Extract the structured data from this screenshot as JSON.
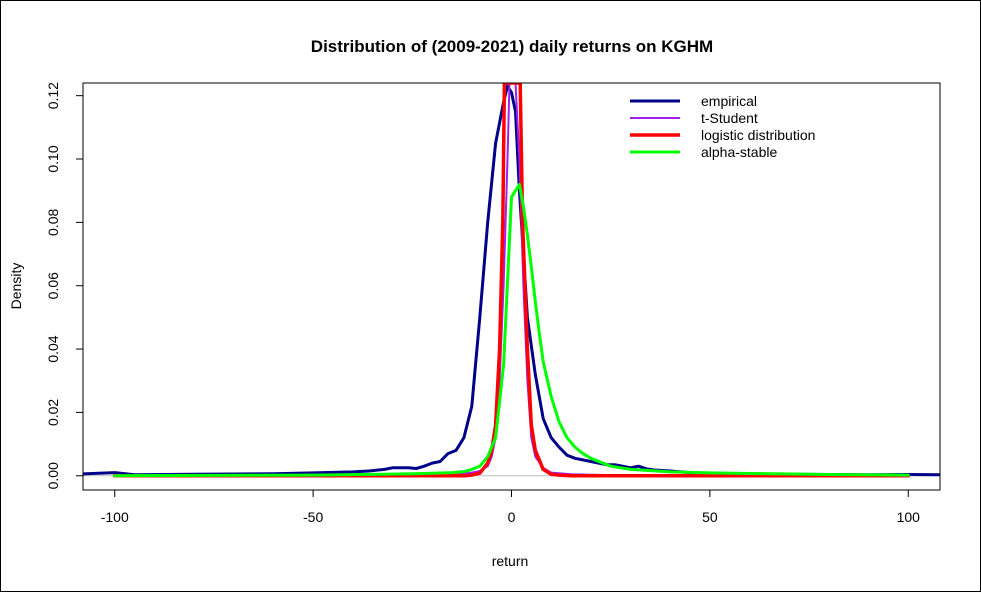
{
  "chart_data": {
    "type": "line",
    "title": "Distribution of (2009-2021) daily returns on KGHM",
    "xlabel": "return",
    "ylabel": "Density",
    "xlim": [
      -108,
      108
    ],
    "ylim": [
      -0.0045,
      0.124
    ],
    "xticks": [
      -100,
      -50,
      0,
      50,
      100
    ],
    "xtick_labels": [
      "-100",
      "-50",
      "0",
      "50",
      "100"
    ],
    "yticks": [
      0,
      0.02,
      0.04,
      0.06,
      0.08,
      0.1,
      0.12
    ],
    "ytick_labels": [
      "0.00",
      "0.02",
      "0.04",
      "0.06",
      "0.08",
      "0.10",
      "0.12"
    ],
    "grid": false,
    "legend_position": "top-right",
    "baseline": {
      "y": 0,
      "color": "#bebebe"
    },
    "series": [
      {
        "name": "empirical",
        "color": "#00008b",
        "width": 3,
        "x": [
          -110,
          -100,
          -95,
          -80,
          -60,
          -50,
          -40,
          -36,
          -32,
          -30,
          -26,
          -24,
          -22,
          -20,
          -18,
          -16,
          -14,
          -12,
          -10,
          -8,
          -6,
          -4,
          -2,
          -1,
          0,
          1,
          2,
          4,
          6,
          8,
          10,
          12,
          14,
          16,
          18,
          20,
          22,
          24,
          26,
          28,
          30,
          32,
          34,
          36,
          40,
          45,
          50,
          60,
          70,
          80,
          90,
          100,
          110
        ],
        "y": [
          0.0005,
          0.001,
          0.0003,
          0.0005,
          0.0006,
          0.0009,
          0.0012,
          0.0015,
          0.002,
          0.0025,
          0.0025,
          0.0023,
          0.003,
          0.004,
          0.0045,
          0.007,
          0.008,
          0.012,
          0.022,
          0.05,
          0.08,
          0.105,
          0.118,
          0.123,
          0.121,
          0.115,
          0.09,
          0.05,
          0.032,
          0.018,
          0.012,
          0.009,
          0.0065,
          0.0055,
          0.005,
          0.0045,
          0.004,
          0.0035,
          0.0035,
          0.003,
          0.0025,
          0.003,
          0.0022,
          0.0018,
          0.0015,
          0.001,
          0.0008,
          0.0006,
          0.0005,
          0.0004,
          0.0003,
          0.0004,
          0.0003
        ]
      },
      {
        "name": "t-Student",
        "color": "#a020f0",
        "width": 2,
        "x": [
          -100,
          -60,
          -30,
          -20,
          -15,
          -10,
          -8,
          -6,
          -5,
          -4,
          -3,
          -2,
          -1,
          -0.5,
          0,
          0.5,
          1,
          2,
          3,
          4,
          5,
          6,
          8,
          10,
          15,
          20,
          30,
          60,
          100
        ],
        "y": [
          0,
          0,
          0.0001,
          0.0003,
          0.0005,
          0.001,
          0.0015,
          0.003,
          0.006,
          0.012,
          0.03,
          0.06,
          0.1,
          0.124,
          0.124,
          0.124,
          0.124,
          0.1,
          0.06,
          0.03,
          0.012,
          0.006,
          0.0025,
          0.001,
          0.0005,
          0.0003,
          0.0001,
          0,
          0
        ]
      },
      {
        "name": "logistic distribution",
        "color": "#ff0000",
        "width": 3.5,
        "x": [
          -100,
          -60,
          -30,
          -20,
          -15,
          -12,
          -10,
          -8,
          -6,
          -5,
          -4,
          -3,
          -2.2,
          -1.8,
          -1,
          0,
          1,
          2,
          2.2,
          2.8,
          4,
          5,
          6,
          8,
          10,
          12,
          15,
          20,
          30,
          60,
          100
        ],
        "y": [
          0,
          0,
          0,
          0,
          0,
          0,
          0.0002,
          0.0008,
          0.004,
          0.008,
          0.016,
          0.04,
          0.08,
          0.124,
          0.124,
          0.124,
          0.124,
          0.124,
          0.124,
          0.08,
          0.04,
          0.016,
          0.008,
          0.002,
          0.0005,
          0.0002,
          0,
          0,
          0,
          0,
          0
        ]
      },
      {
        "name": "alpha-stable",
        "color": "#00ff00",
        "width": 3,
        "x": [
          -100,
          -50,
          -25,
          -20,
          -15,
          -12,
          -10,
          -8,
          -6,
          -4,
          -2,
          0,
          1,
          2,
          3,
          4,
          5,
          6,
          7,
          8,
          10,
          12,
          14,
          16,
          18,
          20,
          25,
          30,
          40,
          50,
          60,
          80,
          100
        ],
        "y": [
          0,
          0.0002,
          0.0006,
          0.0008,
          0.001,
          0.0013,
          0.002,
          0.003,
          0.006,
          0.012,
          0.035,
          0.088,
          0.09,
          0.092,
          0.085,
          0.076,
          0.066,
          0.055,
          0.045,
          0.036,
          0.025,
          0.017,
          0.012,
          0.009,
          0.007,
          0.0055,
          0.003,
          0.002,
          0.0012,
          0.0009,
          0.0007,
          0.0004,
          0.0002
        ]
      }
    ]
  }
}
